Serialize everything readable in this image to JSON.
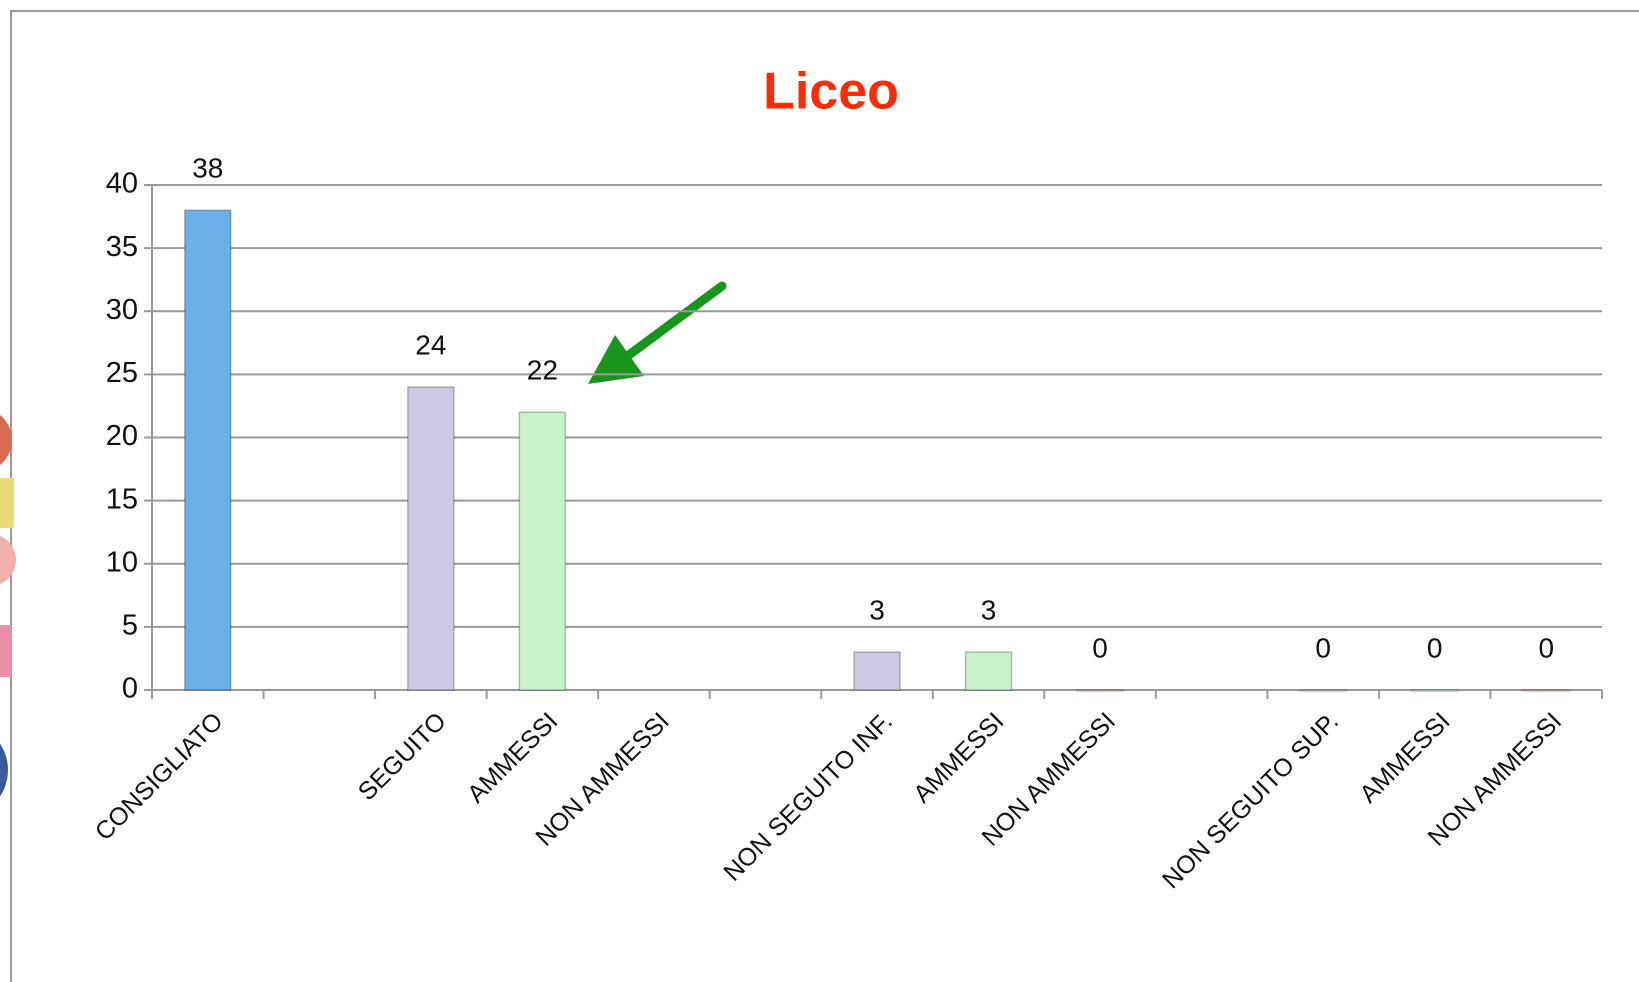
{
  "chart_data": {
    "type": "bar",
    "title": "Liceo",
    "categories": [
      "CONSIGLIATO",
      null,
      "SEGUITO",
      "AMMESSI",
      "NON AMMESSI",
      null,
      "NON SEGUITO INF.",
      "AMMESSI",
      "NON AMMESSI",
      null,
      "NON SEGUITO SUP.",
      "AMMESSI",
      "NON AMMESSI"
    ],
    "values": [
      38,
      null,
      24,
      22,
      null,
      null,
      3,
      3,
      0,
      null,
      0,
      0,
      0
    ],
    "colors": [
      "#6aaeea",
      null,
      "#cfc8e2",
      "#c8f2c8",
      null,
      null,
      "#cfc8e2",
      "#c8f2c8",
      "#e8b8b8",
      null,
      "#cfc8e2",
      "#c8f2c8",
      "#e8b8b8"
    ],
    "ylim": [
      0,
      40
    ],
    "yticks": [
      0,
      5,
      10,
      15,
      20,
      25,
      30,
      35,
      40
    ],
    "grid": true
  }
}
